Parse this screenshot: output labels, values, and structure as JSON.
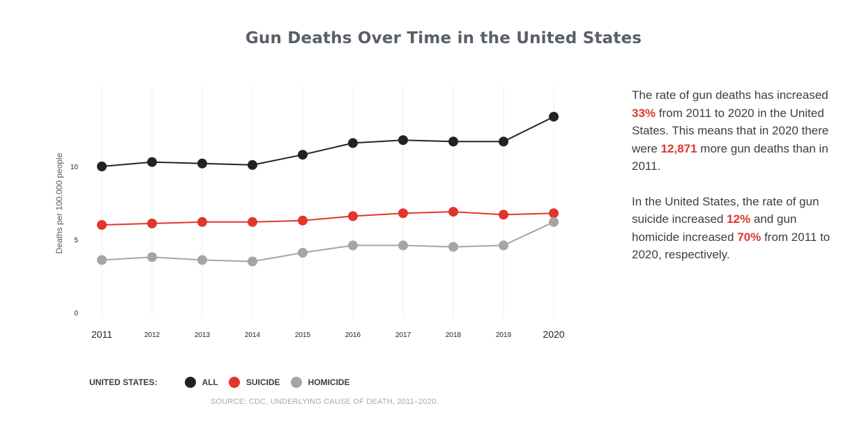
{
  "title": "Gun Deaths Over Time in the United States",
  "colors": {
    "all": "#1f2329",
    "suicide": "#e0362c",
    "homicide": "#a8a49f",
    "title": "#585f69",
    "highlight": "#e0362c"
  },
  "chart_data": {
    "type": "line",
    "title": "Gun Deaths Over Time in the United States",
    "ylabel": "Deaths per 100,000 people",
    "xlabel": "",
    "x": [
      2011,
      2012,
      2013,
      2014,
      2015,
      2016,
      2017,
      2018,
      2019,
      2020
    ],
    "x_tick_labels": [
      "2011",
      "2012",
      "2013",
      "2014",
      "2015",
      "2016",
      "2017",
      "2018",
      "2019",
      "2020"
    ],
    "y_ticks": [
      0,
      5,
      10
    ],
    "y_tick_labels": [
      "0",
      "5",
      "10"
    ],
    "ylim": [
      0,
      15
    ],
    "grid": "vertical",
    "series": [
      {
        "name": "ALL",
        "color": "#1f2329",
        "values": [
          10.0,
          10.3,
          10.2,
          10.1,
          10.8,
          11.6,
          11.8,
          11.7,
          11.7,
          13.4
        ]
      },
      {
        "name": "SUICIDE",
        "color": "#e0362c",
        "values": [
          6.0,
          6.1,
          6.2,
          6.2,
          6.3,
          6.6,
          6.8,
          6.9,
          6.7,
          6.8
        ]
      },
      {
        "name": "HOMICIDE",
        "color": "#a8a49f",
        "values": [
          3.6,
          3.8,
          3.6,
          3.5,
          4.1,
          4.6,
          4.6,
          4.5,
          4.6,
          6.2
        ]
      }
    ]
  },
  "legend": {
    "lead": "UNITED STATES:",
    "items": [
      {
        "label": "ALL",
        "color": "#1f2329"
      },
      {
        "label": "SUICIDE",
        "color": "#e0362c"
      },
      {
        "label": "HOMICIDE",
        "color": "#a8a49f"
      }
    ]
  },
  "side": {
    "p1_a": "The rate of gun deaths has increased ",
    "p1_hl1": "33%",
    "p1_b": " from 2011 to 2020 in the United States. This means that in 2020 there were ",
    "p1_hl2": "12,871",
    "p1_c": " more gun deaths than in 2011.",
    "p2_a": "In the United States, the rate of gun suicide increased ",
    "p2_hl1": "12%",
    "p2_b": " and gun homicide increased ",
    "p2_hl2": "70%",
    "p2_c": " from 2011 to 2020, respectively."
  },
  "source": "SOURCE: CDC, UNDERLYING CAUSE OF DEATH, 2011–2020."
}
